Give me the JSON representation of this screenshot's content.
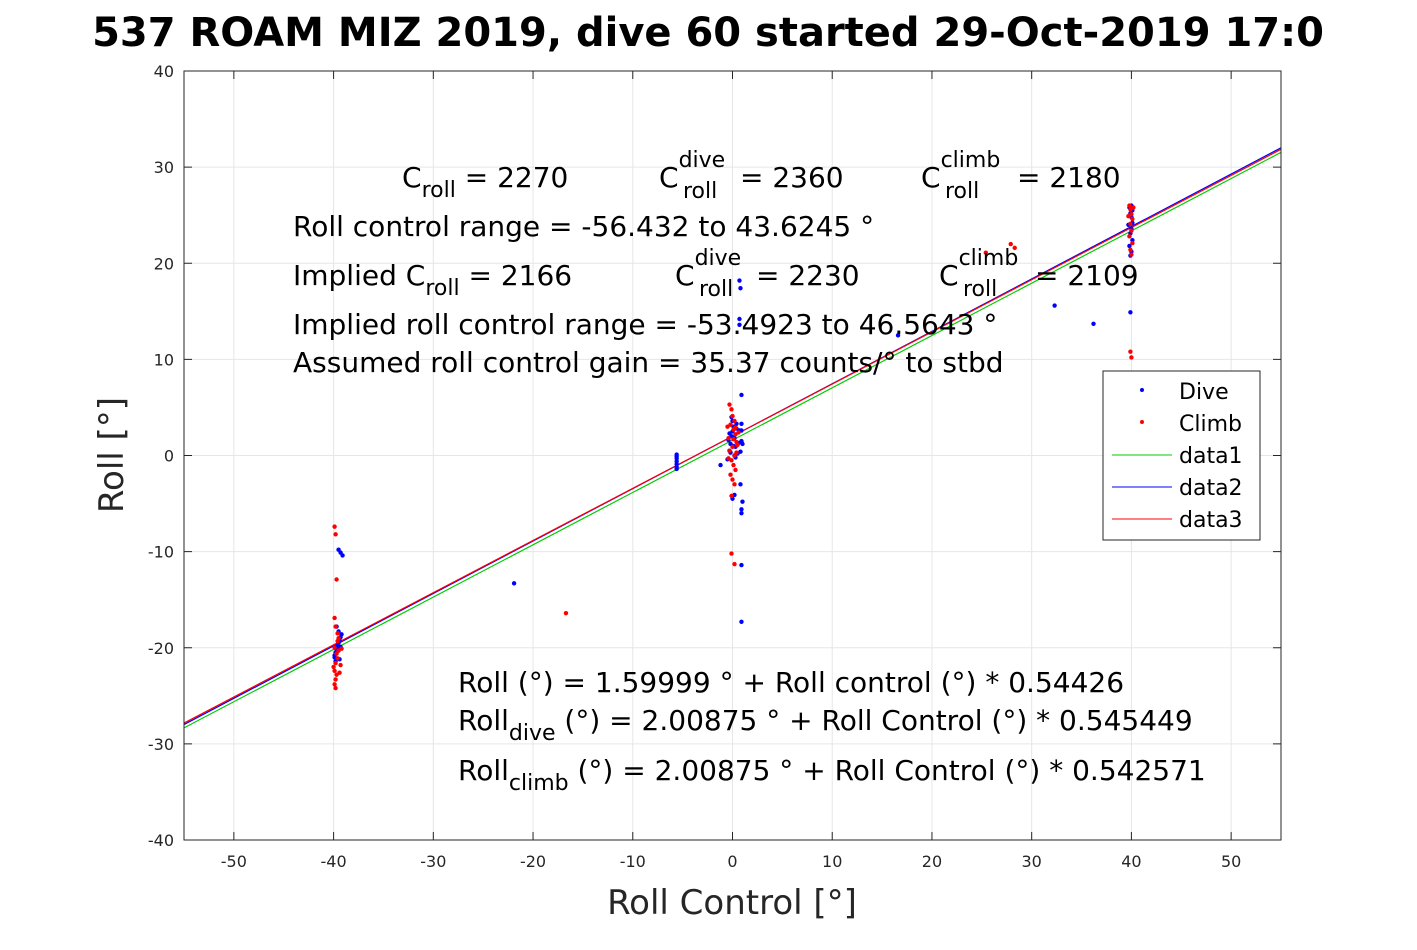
{
  "chart_data": {
    "type": "scatter",
    "title": "537 ROAM MIZ 2019, dive 60 started 29-Oct-2019 17:0",
    "xlabel": "Roll Control [°]",
    "ylabel": "Roll [°]",
    "xlim": [
      -55,
      55
    ],
    "ylim": [
      -40,
      40
    ],
    "xticks": [
      -50,
      -40,
      -30,
      -20,
      -10,
      0,
      10,
      20,
      30,
      40,
      50
    ],
    "yticks": [
      -40,
      -30,
      -20,
      -10,
      0,
      10,
      20,
      30,
      40
    ],
    "grid": true,
    "legend_position": "right",
    "series": [
      {
        "name": "Dive",
        "type": "scatter",
        "color": "#0000ff",
        "points": [
          [
            -39.9,
            -21.0
          ],
          [
            -39.8,
            -20.5
          ],
          [
            -39.7,
            -20.2
          ],
          [
            -39.6,
            -19.8
          ],
          [
            -39.5,
            -19.5
          ],
          [
            -39.4,
            -19.2
          ],
          [
            -39.3,
            -18.9
          ],
          [
            -39.2,
            -18.6
          ],
          [
            -39.9,
            -20.8
          ],
          [
            -39.6,
            -20.0
          ],
          [
            -39.5,
            -18.3
          ],
          [
            -39.3,
            -19.9
          ],
          [
            -39.8,
            -21.4
          ],
          [
            -39.4,
            -21.2
          ],
          [
            -39.7,
            -17.8
          ],
          [
            -39.5,
            -9.8
          ],
          [
            -39.3,
            -10.1
          ],
          [
            -39.1,
            -10.4
          ],
          [
            -21.9,
            -13.3
          ],
          [
            -5.6,
            -0.3
          ],
          [
            -5.6,
            -0.6
          ],
          [
            -5.6,
            -0.9
          ],
          [
            -5.6,
            -1.2
          ],
          [
            -5.6,
            -0.1
          ],
          [
            -5.6,
            0.1
          ],
          [
            -5.6,
            -1.4
          ],
          [
            -0.3,
            0.5
          ],
          [
            -0.2,
            1.2
          ],
          [
            -0.1,
            2.0
          ],
          [
            0.0,
            2.5
          ],
          [
            0.1,
            3.0
          ],
          [
            0.2,
            1.8
          ],
          [
            0.3,
            0.9
          ],
          [
            0.4,
            2.8
          ],
          [
            -0.4,
            1.6
          ],
          [
            0.5,
            0.2
          ],
          [
            -0.5,
            -0.4
          ],
          [
            0.6,
            1.3
          ],
          [
            0.0,
            3.6
          ],
          [
            0.2,
            0.0
          ],
          [
            -0.2,
            0.3
          ],
          [
            0.3,
            -0.2
          ],
          [
            -0.3,
            2.3
          ],
          [
            0.1,
            1.0
          ],
          [
            0.4,
            3.3
          ],
          [
            -0.1,
            4.0
          ],
          [
            -1.2,
            -1.0
          ],
          [
            0.8,
            0.4
          ],
          [
            0.9,
            1.4
          ],
          [
            0.7,
            2.6
          ],
          [
            0.7,
            18.2
          ],
          [
            0.8,
            17.4
          ],
          [
            0.7,
            14.2
          ],
          [
            0.7,
            13.6
          ],
          [
            0.9,
            6.3
          ],
          [
            0.9,
            3.3
          ],
          [
            0.9,
            2.6
          ],
          [
            0.9,
            1.5
          ],
          [
            1.0,
            1.2
          ],
          [
            1.0,
            -4.8
          ],
          [
            0.9,
            -5.6
          ],
          [
            0.9,
            -6.0
          ],
          [
            0.8,
            -3.0
          ],
          [
            0.9,
            -11.4
          ],
          [
            0.9,
            -17.3
          ],
          [
            0.2,
            -4.1
          ],
          [
            0.0,
            -4.5
          ],
          [
            16.6,
            12.5
          ],
          [
            32.3,
            15.6
          ],
          [
            36.2,
            13.7
          ],
          [
            39.8,
            25.8
          ],
          [
            39.9,
            25.2
          ],
          [
            40.0,
            24.8
          ],
          [
            40.1,
            24.2
          ],
          [
            40.0,
            23.6
          ],
          [
            39.9,
            23.1
          ],
          [
            40.1,
            22.4
          ],
          [
            39.8,
            21.8
          ],
          [
            40.0,
            21.2
          ],
          [
            39.9,
            20.8
          ],
          [
            40.1,
            25.5
          ],
          [
            39.7,
            24.0
          ],
          [
            39.9,
            14.9
          ],
          [
            40.0,
            26.0
          ]
        ]
      },
      {
        "name": "Climb",
        "type": "scatter",
        "color": "#ff0000",
        "points": [
          [
            -39.9,
            -7.4
          ],
          [
            -39.8,
            -8.2
          ],
          [
            -39.7,
            -12.9
          ],
          [
            -39.9,
            -16.9
          ],
          [
            -39.8,
            -17.8
          ],
          [
            -39.6,
            -18.5
          ],
          [
            -39.5,
            -19.0
          ],
          [
            -39.9,
            -20.0
          ],
          [
            -39.7,
            -20.6
          ],
          [
            -39.6,
            -21.1
          ],
          [
            -39.8,
            -21.6
          ],
          [
            -40.0,
            -22.0
          ],
          [
            -39.9,
            -22.4
          ],
          [
            -39.7,
            -22.8
          ],
          [
            -39.8,
            -23.3
          ],
          [
            -39.9,
            -23.8
          ],
          [
            -39.8,
            -24.2
          ],
          [
            -39.5,
            -20.3
          ],
          [
            -39.3,
            -21.8
          ],
          [
            -39.6,
            -19.3
          ],
          [
            -39.4,
            -22.6
          ],
          [
            -39.2,
            -20.1
          ],
          [
            -16.7,
            -16.4
          ],
          [
            -0.3,
            5.3
          ],
          [
            -0.1,
            4.8
          ],
          [
            0.0,
            4.1
          ],
          [
            0.2,
            3.6
          ],
          [
            -0.2,
            3.2
          ],
          [
            0.1,
            2.7
          ],
          [
            0.3,
            2.2
          ],
          [
            -0.4,
            1.8
          ],
          [
            0.4,
            1.4
          ],
          [
            0.0,
            0.9
          ],
          [
            -0.3,
            0.5
          ],
          [
            0.2,
            0.0
          ],
          [
            -0.1,
            -0.5
          ],
          [
            0.1,
            -1.0
          ],
          [
            0.3,
            -1.5
          ],
          [
            -0.2,
            -2.0
          ],
          [
            0.0,
            -2.5
          ],
          [
            0.2,
            -3.0
          ],
          [
            -0.1,
            -4.2
          ],
          [
            0.3,
            2.9
          ],
          [
            0.5,
            1.1
          ],
          [
            0.6,
            2.4
          ],
          [
            -0.5,
            3.0
          ],
          [
            0.4,
            0.3
          ],
          [
            -0.4,
            -0.3
          ],
          [
            0.1,
            1.7
          ],
          [
            -0.1,
            -10.2
          ],
          [
            0.2,
            -11.3
          ],
          [
            25.4,
            21.1
          ],
          [
            27.9,
            22.0
          ],
          [
            28.3,
            21.6
          ],
          [
            39.8,
            26.0
          ],
          [
            39.9,
            25.6
          ],
          [
            40.0,
            25.1
          ],
          [
            40.1,
            24.6
          ],
          [
            39.9,
            24.1
          ],
          [
            40.0,
            23.4
          ],
          [
            39.8,
            22.8
          ],
          [
            40.1,
            22.1
          ],
          [
            39.9,
            21.4
          ],
          [
            40.0,
            20.9
          ],
          [
            40.2,
            25.8
          ],
          [
            39.7,
            24.9
          ],
          [
            39.9,
            10.8
          ],
          [
            40.0,
            10.2
          ]
        ]
      },
      {
        "name": "data1",
        "type": "line",
        "color": "#00cc00",
        "intercept": 1.59999,
        "slope": 0.54426
      },
      {
        "name": "data2",
        "type": "line",
        "color": "#0000ff",
        "intercept": 2.00875,
        "slope": 0.545449
      },
      {
        "name": "data3",
        "type": "line",
        "color": "#ff0000",
        "intercept": 2.00875,
        "slope": 0.542571
      }
    ]
  },
  "annotations": {
    "c_roll": "C",
    "c_roll_sub": "roll",
    "c_roll_val": " = 2270",
    "c_dive_sup": "dive",
    "c_dive_sub": "roll",
    "c_dive_val": " = 2360",
    "c_climb_sup": "climb",
    "c_climb_sub": "roll",
    "c_climb_val": " = 2180",
    "range": "Roll control range = -56.432 to 43.6245 °",
    "implied_prefix": "Implied C",
    "implied_val": " = 2166",
    "implied_dive_val": " = 2230",
    "implied_climb_val": " = 2109",
    "implied_range": "Implied roll control range = -53.4923 to 46.5643 °",
    "gain": "Assumed roll control gain = 35.37 counts/° to stbd",
    "eq1": "Roll (°) = 1.59999 ° + Roll control (°) * 0.54426",
    "eq2_main": "Roll",
    "eq2_sub": "dive",
    "eq2_rest": " (°) = 2.00875 ° + Roll Control (°) * 0.545449",
    "eq3_main": "Roll",
    "eq3_sub": "climb",
    "eq3_rest": " (°) = 2.00875 ° + Roll Control (°) * 0.542571"
  },
  "legend": {
    "dive": "Dive",
    "climb": "Climb",
    "data1": "data1",
    "data2": "data2",
    "data3": "data3"
  }
}
